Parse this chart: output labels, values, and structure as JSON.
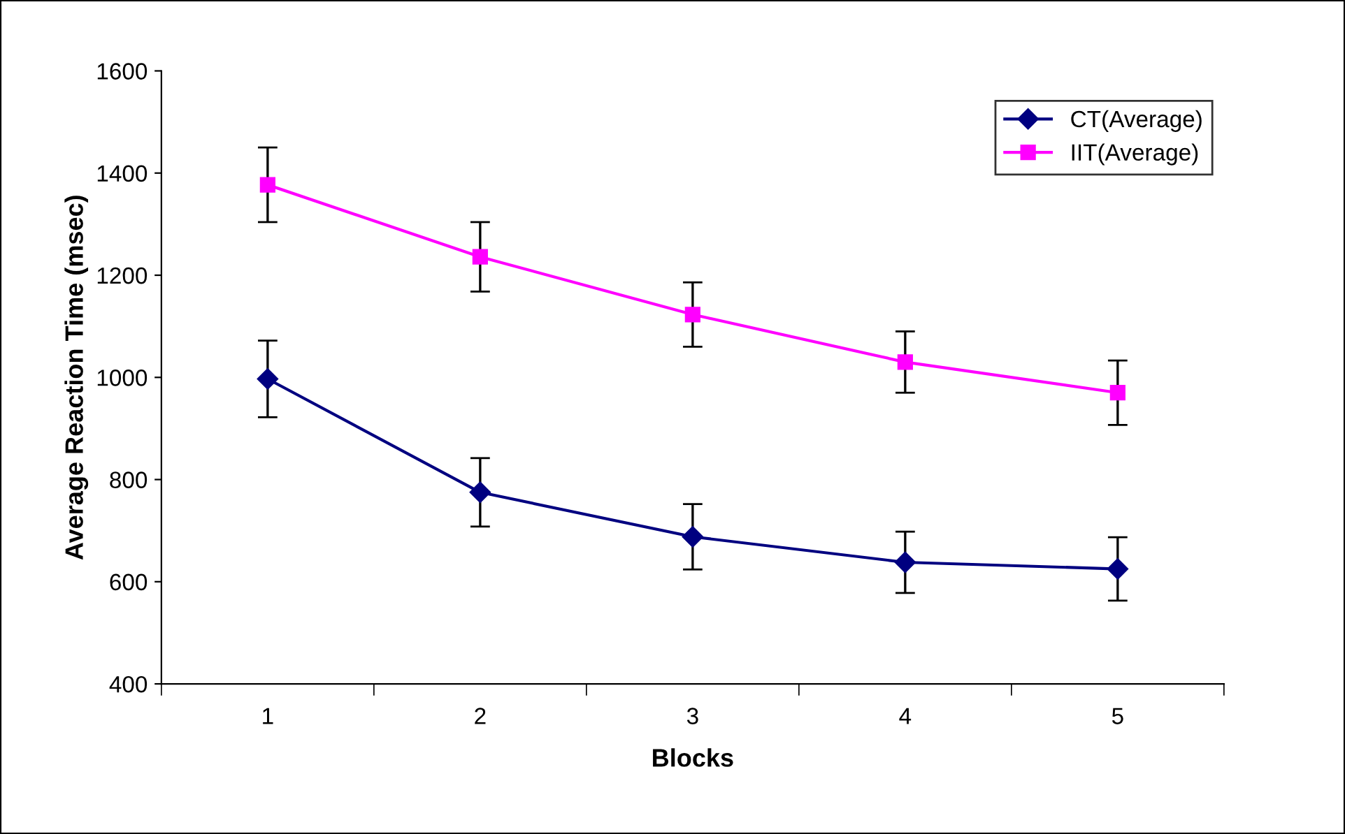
{
  "chart_data": {
    "type": "line",
    "xlabel": "Blocks",
    "ylabel": "Average Reaction Time (msec)",
    "categories": [
      "1",
      "2",
      "3",
      "4",
      "5"
    ],
    "series": [
      {
        "name": "CT(Average)",
        "color": "#000080",
        "marker": "diamond",
        "values": [
          997,
          775,
          688,
          638,
          625
        ],
        "errors": [
          75,
          67,
          64,
          60,
          62
        ]
      },
      {
        "name": "IIT(Average)",
        "color": "#ff00ff",
        "marker": "square",
        "values": [
          1377,
          1236,
          1123,
          1030,
          970
        ],
        "errors": [
          73,
          68,
          63,
          60,
          63
        ]
      }
    ],
    "ylim": [
      400,
      1600
    ],
    "yticks": [
      400,
      600,
      800,
      1000,
      1200,
      1400,
      1600
    ],
    "grid": false,
    "legend": "top right"
  }
}
